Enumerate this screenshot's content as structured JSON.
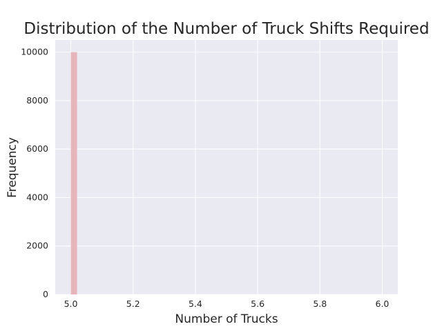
{
  "chart_data": {
    "type": "bar",
    "title": "Distribution of the Number of Truck Shifts Required",
    "xlabel": "Number of Trucks",
    "ylabel": "Frequency",
    "xlim": [
      4.95,
      6.05
    ],
    "ylim": [
      0,
      10500
    ],
    "xticks": [
      5.0,
      5.2,
      5.4,
      5.6,
      5.8,
      6.0
    ],
    "xtick_labels": [
      "5.0",
      "5.2",
      "5.4",
      "5.6",
      "5.8",
      "6.0"
    ],
    "yticks": [
      0,
      2000,
      4000,
      6000,
      8000,
      10000
    ],
    "ytick_labels": [
      "0",
      "2000",
      "4000",
      "6000",
      "8000",
      "10000"
    ],
    "bins": [
      {
        "x0": 5.0,
        "x1": 5.02,
        "value": 10000
      }
    ],
    "grid": true,
    "colors": {
      "bar": "#e6b4bb",
      "plot_background": "#eaeaf2",
      "grid": "#ffffff",
      "text": "#262626"
    }
  }
}
